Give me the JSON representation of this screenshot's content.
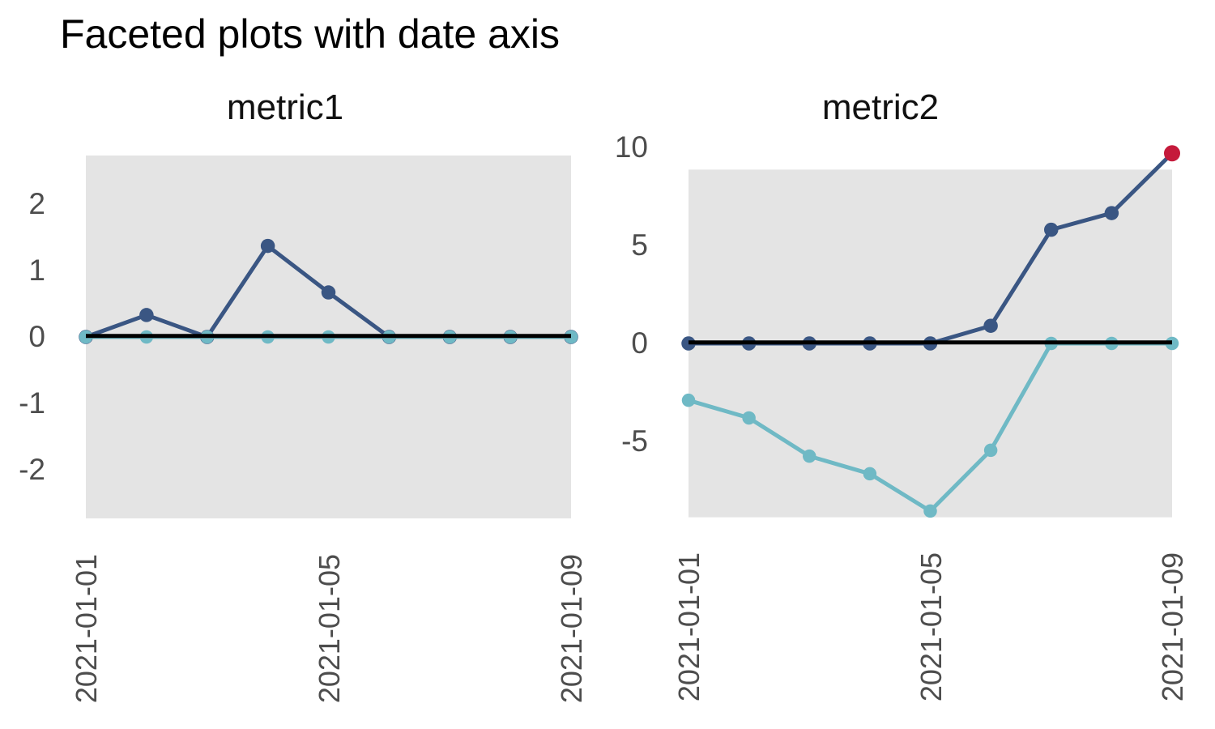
{
  "title": "Faceted plots with date axis",
  "colors": {
    "navy": "#3a5683",
    "teal": "#6fb9c5",
    "red": "#c51a3b",
    "panel_background": "#e4e4e4",
    "zero_line": "#000000",
    "axis_text": "#4d4d4d",
    "title_text": "#000000"
  },
  "chart_data": [
    {
      "type": "line",
      "title": "metric1",
      "x": [
        "2021-01-01",
        "2021-01-02",
        "2021-01-03",
        "2021-01-04",
        "2021-01-05",
        "2021-01-06",
        "2021-01-07",
        "2021-01-08",
        "2021-01-09"
      ],
      "x_tick_labels": [
        "2021-01-01",
        "2021-01-05",
        "2021-01-09"
      ],
      "x_tick_index": [
        0,
        4,
        8
      ],
      "y_ticks": [
        2,
        1,
        0,
        -1,
        -2
      ],
      "ylim": [
        -2.73,
        2.73
      ],
      "grid": false,
      "legend": "none",
      "zero_line": true,
      "highlight_last_point": false,
      "series": [
        {
          "name": "navy-series",
          "color_key": "navy",
          "values": [
            0,
            0.33,
            0,
            1.37,
            0.67,
            0,
            0,
            0,
            0
          ]
        },
        {
          "name": "teal-series",
          "color_key": "teal",
          "values": [
            0,
            0,
            0,
            0,
            0,
            0,
            0,
            0,
            0
          ]
        }
      ]
    },
    {
      "type": "line",
      "title": "metric2",
      "x": [
        "2021-01-01",
        "2021-01-02",
        "2021-01-03",
        "2021-01-04",
        "2021-01-05",
        "2021-01-06",
        "2021-01-07",
        "2021-01-08",
        "2021-01-09"
      ],
      "x_tick_labels": [
        "2021-01-01",
        "2021-01-05",
        "2021-01-09"
      ],
      "x_tick_index": [
        0,
        4,
        8
      ],
      "y_ticks": [
        10,
        5,
        0,
        -5
      ],
      "ylim": [
        -8.87,
        8.87
      ],
      "grid": false,
      "legend": "none",
      "zero_line": true,
      "highlight_last_point": true,
      "highlight_color_key": "red",
      "series": [
        {
          "name": "navy-series",
          "color_key": "navy",
          "values": [
            0,
            0,
            0,
            0,
            0,
            0.9,
            5.8,
            6.65,
            9.7
          ]
        },
        {
          "name": "teal-series",
          "color_key": "teal",
          "values": [
            -2.9,
            -3.8,
            -5.75,
            -6.65,
            -8.55,
            -5.45,
            0,
            0,
            0
          ]
        }
      ]
    }
  ]
}
